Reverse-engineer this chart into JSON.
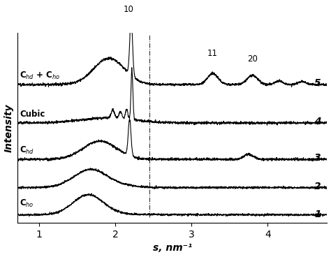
{
  "xlabel": "s, nm⁻¹",
  "ylabel": "Intensity",
  "xlim": [
    0.72,
    4.78
  ],
  "x_ticks": [
    1,
    2,
    3,
    4
  ],
  "dashed_line_x": 2.45,
  "label_5": "5",
  "label_4": "4",
  "label_3": "3",
  "label_2": "2",
  "label_1": "1",
  "annotation_10": "10",
  "annotation_11": "11",
  "annotation_20": "20",
  "annot_Chd_Cho": "C$_{hd}$ + C$_{ho}$",
  "annot_Cubic": "Cubic",
  "annot_Chd": "C$_{hd}$",
  "annot_Cho": "C$_{ho}$",
  "bg_color": "#ffffff",
  "line_color": "#000000",
  "offsets": [
    0.0,
    0.14,
    0.28,
    0.46,
    0.65
  ],
  "ylim": [
    -0.02,
    0.92
  ]
}
